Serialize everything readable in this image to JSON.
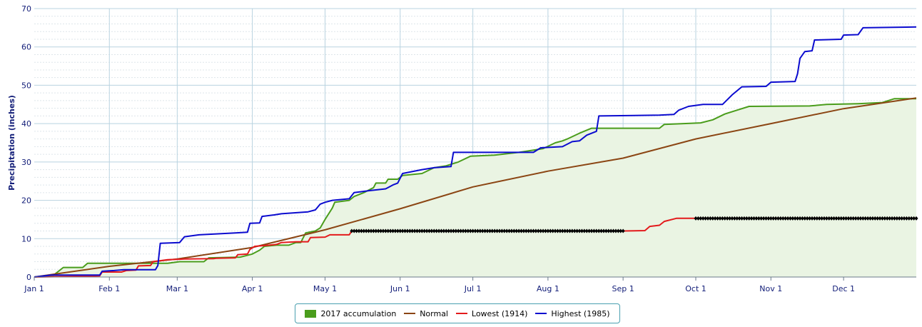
{
  "chart_data": {
    "type": "line",
    "xlabel": "",
    "ylabel": "Precipitation (inches)",
    "ylim": [
      0,
      70
    ],
    "yticks": [
      "0",
      "10",
      "20",
      "30",
      "40",
      "50",
      "60",
      "70"
    ],
    "xlim": [
      0,
      364
    ],
    "month_ticks": [
      {
        "day": 0,
        "label": "Jan 1"
      },
      {
        "day": 31,
        "label": "Feb 1"
      },
      {
        "day": 59,
        "label": "Mar 1"
      },
      {
        "day": 90,
        "label": "Apr 1"
      },
      {
        "day": 120,
        "label": "May 1"
      },
      {
        "day": 151,
        "label": "Jun 1"
      },
      {
        "day": 181,
        "label": "Jul 1"
      },
      {
        "day": 212,
        "label": "Aug 1"
      },
      {
        "day": 243,
        "label": "Sep 1"
      },
      {
        "day": 273,
        "label": "Oct 1"
      },
      {
        "day": 304,
        "label": "Nov 1"
      },
      {
        "day": 334,
        "label": "Dec 1"
      }
    ],
    "grid": true,
    "legend_position": "bottom-center",
    "series": [
      {
        "name": "2017 accumulation",
        "kind": "area",
        "color": "#4a9d1c",
        "fill": "#eaf4e3",
        "points": [
          [
            0,
            0
          ],
          [
            8,
            0.5
          ],
          [
            12,
            2.5
          ],
          [
            20,
            2.5
          ],
          [
            22,
            3.6
          ],
          [
            55,
            3.6
          ],
          [
            60,
            4
          ],
          [
            70,
            4
          ],
          [
            72,
            5
          ],
          [
            85,
            5.2
          ],
          [
            90,
            6
          ],
          [
            93,
            7
          ],
          [
            95,
            8
          ],
          [
            100,
            8.3
          ],
          [
            105,
            8.3
          ],
          [
            108,
            9
          ],
          [
            110,
            9
          ],
          [
            112,
            11.5
          ],
          [
            116,
            12
          ],
          [
            118,
            12.8
          ],
          [
            120,
            15
          ],
          [
            123,
            18
          ],
          [
            124,
            19.5
          ],
          [
            130,
            20
          ],
          [
            132,
            21
          ],
          [
            136,
            22
          ],
          [
            140,
            23.3
          ],
          [
            141,
            24.5
          ],
          [
            145,
            24.5
          ],
          [
            146,
            25.5
          ],
          [
            150,
            25.5
          ],
          [
            152,
            26.5
          ],
          [
            160,
            27
          ],
          [
            165,
            28.5
          ],
          [
            170,
            29
          ],
          [
            175,
            30
          ],
          [
            180,
            31.5
          ],
          [
            190,
            31.8
          ],
          [
            200,
            32.5
          ],
          [
            207,
            33.2
          ],
          [
            210,
            33.5
          ],
          [
            215,
            35
          ],
          [
            218,
            35.5
          ],
          [
            220,
            36
          ],
          [
            225,
            37.5
          ],
          [
            230,
            38.8
          ],
          [
            258,
            38.8
          ],
          [
            260,
            39.8
          ],
          [
            268,
            40
          ],
          [
            275,
            40.2
          ],
          [
            280,
            41
          ],
          [
            285,
            42.5
          ],
          [
            290,
            43.5
          ],
          [
            295,
            44.5
          ],
          [
            320,
            44.6
          ],
          [
            327,
            45
          ],
          [
            340,
            45.2
          ],
          [
            350,
            45.5
          ],
          [
            355,
            46.5
          ],
          [
            364,
            46.5
          ]
        ]
      },
      {
        "name": "Normal",
        "kind": "line",
        "color": "#8b4513",
        "points": [
          [
            0,
            0
          ],
          [
            31,
            2.8
          ],
          [
            59,
            4.7
          ],
          [
            90,
            7.7
          ],
          [
            120,
            12.3
          ],
          [
            151,
            17.8
          ],
          [
            181,
            23.5
          ],
          [
            212,
            27.6
          ],
          [
            243,
            31
          ],
          [
            273,
            36
          ],
          [
            304,
            40
          ],
          [
            334,
            43.9
          ],
          [
            364,
            46.7
          ]
        ]
      },
      {
        "name": "Lowest (1914)",
        "kind": "line",
        "color": "#e31a1c",
        "points": [
          [
            0,
            0
          ],
          [
            27,
            0.3
          ],
          [
            28,
            1.3
          ],
          [
            36,
            1.3
          ],
          [
            38,
            1.7
          ],
          [
            42,
            1.8
          ],
          [
            43,
            2.9
          ],
          [
            48,
            3
          ],
          [
            49,
            4
          ],
          [
            55,
            4.5
          ],
          [
            62,
            4.7
          ],
          [
            74,
            4.8
          ],
          [
            75,
            4.9
          ],
          [
            83,
            5
          ],
          [
            84,
            5.8
          ],
          [
            88,
            6
          ],
          [
            89,
            7.2
          ],
          [
            91,
            8
          ],
          [
            97,
            8.3
          ],
          [
            100,
            8.5
          ],
          [
            102,
            9
          ],
          [
            108,
            9.2
          ],
          [
            113,
            9.2
          ],
          [
            114,
            10.3
          ],
          [
            120,
            10.4
          ],
          [
            122,
            11
          ],
          [
            130,
            11
          ],
          [
            131,
            12
          ],
          [
            243,
            12
          ],
          [
            252,
            12.1
          ],
          [
            254,
            13.2
          ],
          [
            258,
            13.5
          ],
          [
            260,
            14.5
          ],
          [
            265,
            15.3
          ],
          [
            364,
            15.3
          ]
        ]
      },
      {
        "name": "Highest (1985)",
        "kind": "line",
        "color": "#0b0bcf",
        "points": [
          [
            0,
            0
          ],
          [
            7,
            0.5
          ],
          [
            27,
            0.5
          ],
          [
            28,
            1.5
          ],
          [
            33,
            1.7
          ],
          [
            37,
            1.9
          ],
          [
            50,
            1.9
          ],
          [
            51,
            3
          ],
          [
            52,
            8.8
          ],
          [
            60,
            9
          ],
          [
            62,
            10.5
          ],
          [
            68,
            11
          ],
          [
            83,
            11.5
          ],
          [
            88,
            11.7
          ],
          [
            89,
            14
          ],
          [
            93,
            14.1
          ],
          [
            94,
            15.8
          ],
          [
            99,
            16.2
          ],
          [
            102,
            16.5
          ],
          [
            113,
            17
          ],
          [
            116,
            17.5
          ],
          [
            118,
            19
          ],
          [
            120,
            19.5
          ],
          [
            123,
            20
          ],
          [
            130,
            20.4
          ],
          [
            132,
            22
          ],
          [
            138,
            22.5
          ],
          [
            145,
            23
          ],
          [
            148,
            24
          ],
          [
            150,
            24.5
          ],
          [
            152,
            27
          ],
          [
            160,
            28
          ],
          [
            165,
            28.5
          ],
          [
            172,
            28.8
          ],
          [
            173,
            32.5
          ],
          [
            206,
            32.5
          ],
          [
            209,
            33.7
          ],
          [
            218,
            34
          ],
          [
            222,
            35.3
          ],
          [
            225,
            35.5
          ],
          [
            228,
            37
          ],
          [
            232,
            38
          ],
          [
            233,
            42
          ],
          [
            258,
            42.2
          ],
          [
            264,
            42.4
          ],
          [
            266,
            43.5
          ],
          [
            270,
            44.5
          ],
          [
            276,
            45
          ],
          [
            284,
            45
          ],
          [
            288,
            47.5
          ],
          [
            292,
            49.6
          ],
          [
            302,
            49.7
          ],
          [
            304,
            50.8
          ],
          [
            314,
            51
          ],
          [
            315,
            53
          ],
          [
            316,
            57
          ],
          [
            318,
            58.8
          ],
          [
            321,
            59
          ],
          [
            322,
            61.8
          ],
          [
            333,
            62
          ],
          [
            334,
            63.1
          ],
          [
            340,
            63.2
          ],
          [
            342,
            65
          ],
          [
            364,
            65.2
          ]
        ]
      }
    ],
    "marker_series": {
      "color": "#000000",
      "runs": [
        {
          "start": 131,
          "end": 243,
          "value": 12
        },
        {
          "start": 273,
          "end": 364,
          "value": 15.3
        }
      ]
    }
  },
  "legend": {
    "items": [
      {
        "label": "2017 accumulation",
        "color": "#4a9d1c",
        "type": "box"
      },
      {
        "label": "Normal",
        "color": "#8b4513",
        "type": "line"
      },
      {
        "label": "Lowest (1914)",
        "color": "#e31a1c",
        "type": "line"
      },
      {
        "label": "Highest (1985)",
        "color": "#0b0bcf",
        "type": "line"
      }
    ]
  }
}
